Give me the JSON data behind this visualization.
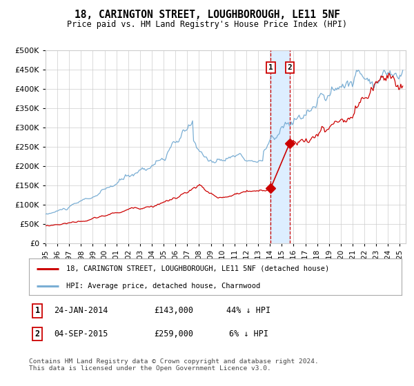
{
  "title": "18, CARINGTON STREET, LOUGHBOROUGH, LE11 5NF",
  "subtitle": "Price paid vs. HM Land Registry's House Price Index (HPI)",
  "legend_line1": "18, CARINGTON STREET, LOUGHBOROUGH, LE11 5NF (detached house)",
  "legend_line2": "HPI: Average price, detached house, Charnwood",
  "footnote": "Contains HM Land Registry data © Crown copyright and database right 2024.\nThis data is licensed under the Open Government Licence v3.0.",
  "transaction1_date": "24-JAN-2014",
  "transaction1_price": 143000,
  "transaction1_hpi": "44% ↓ HPI",
  "transaction2_date": "04-SEP-2015",
  "transaction2_price": 259000,
  "transaction2_hpi": "6% ↓ HPI",
  "transaction1_x": 2014.07,
  "transaction2_x": 2015.67,
  "hpi_color": "#7aaed4",
  "price_color": "#cc0000",
  "marker_color": "#cc0000",
  "vline_color": "#cc0000",
  "shade_color": "#ddeeff",
  "grid_color": "#cccccc",
  "bg_color": "#ffffff",
  "ylim_min": 0,
  "ylim_max": 500000,
  "xlim_min": 1995.0,
  "xlim_max": 2025.5
}
